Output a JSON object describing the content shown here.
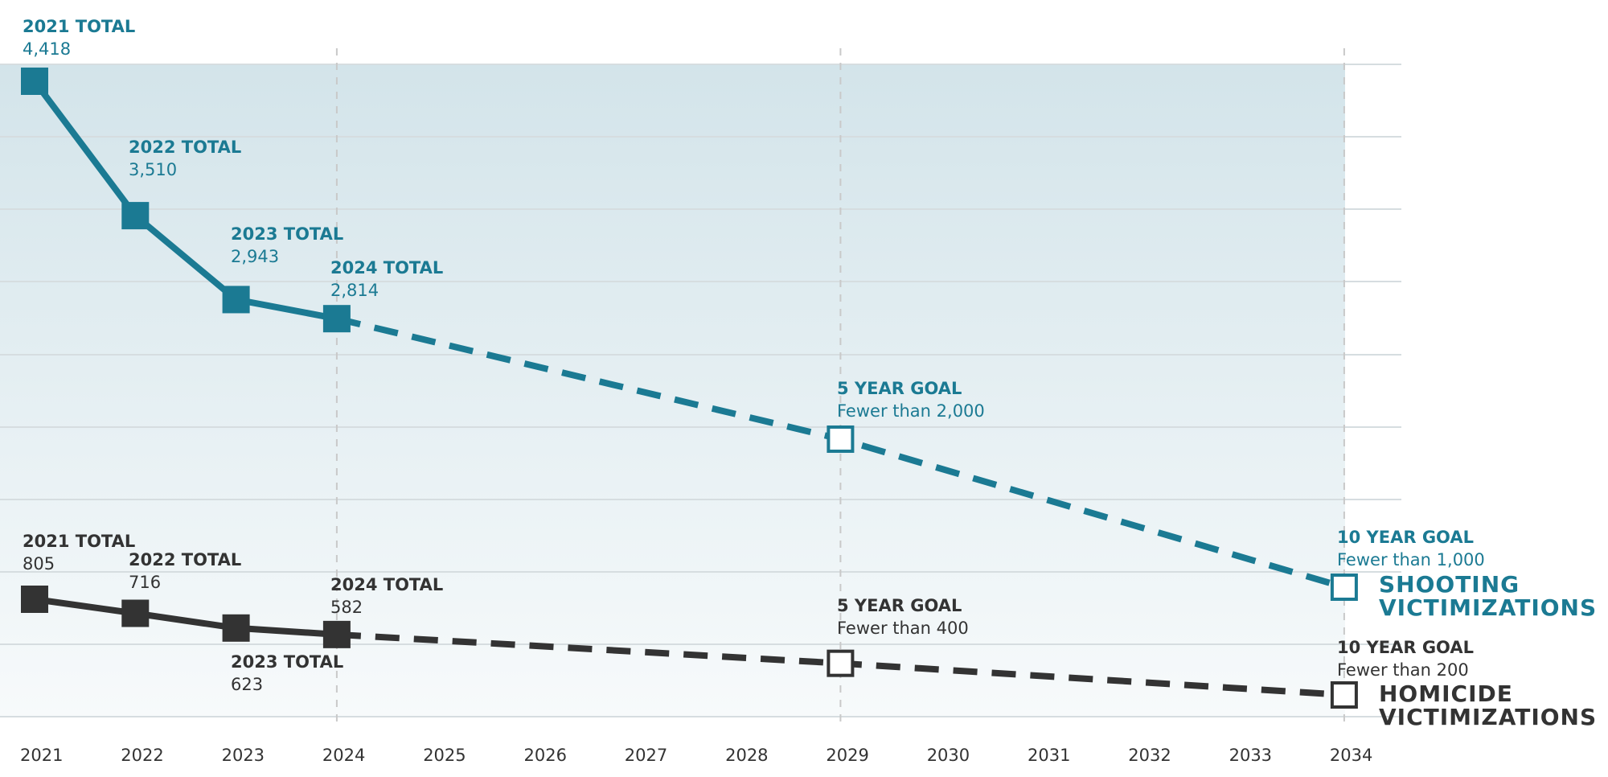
{
  "chart_data": {
    "type": "line",
    "x": [
      2021,
      2022,
      2023,
      2024,
      2025,
      2026,
      2027,
      2028,
      2029,
      2030,
      2031,
      2032,
      2033,
      2034
    ],
    "xlabel": "",
    "ylabel": "",
    "grid": true,
    "series": [
      {
        "name_lines": [
          "SHOOTING",
          "VICTIMIZATIONS"
        ],
        "color": "#1b7a93",
        "actual": [
          {
            "x": 2021,
            "y": 4418,
            "head": "2021 TOTAL",
            "value": "4,418"
          },
          {
            "x": 2022,
            "y": 3510,
            "head": "2022 TOTAL",
            "value": "3,510"
          },
          {
            "x": 2023,
            "y": 2943,
            "head": "2023 TOTAL",
            "value": "2,943"
          },
          {
            "x": 2024,
            "y": 2814,
            "head": "2024 TOTAL",
            "value": "2,814"
          }
        ],
        "goals": [
          {
            "x": 2029,
            "y": 2000,
            "head": "5 YEAR GOAL",
            "value": "Fewer than 2,000"
          },
          {
            "x": 2034,
            "y": 1000,
            "head": "10 YEAR GOAL",
            "value": "Fewer than 1,000"
          }
        ]
      },
      {
        "name_lines": [
          "HOMICIDE",
          "VICTIMIZATIONS"
        ],
        "color": "#333333",
        "actual": [
          {
            "x": 2021,
            "y": 805,
            "head": "2021 TOTAL",
            "value": "805"
          },
          {
            "x": 2022,
            "y": 716,
            "head": "2022 TOTAL",
            "value": "716"
          },
          {
            "x": 2023,
            "y": 623,
            "head": "2023 TOTAL",
            "value": "623"
          },
          {
            "x": 2024,
            "y": 582,
            "head": "2024 TOTAL",
            "value": "582"
          }
        ],
        "goals": [
          {
            "x": 2029,
            "y": 400,
            "head": "5 YEAR GOAL",
            "value": "Fewer than 400"
          },
          {
            "x": 2034,
            "y": 200,
            "head": "10 YEAR GOAL",
            "value": "Fewer than 200"
          }
        ]
      }
    ]
  },
  "colors": {
    "shooting": "#1b7a93",
    "homicide": "#333333",
    "band_top": "#d3e4ea",
    "band_bottom": "#f7fafb",
    "grid": "#d6dde0"
  }
}
